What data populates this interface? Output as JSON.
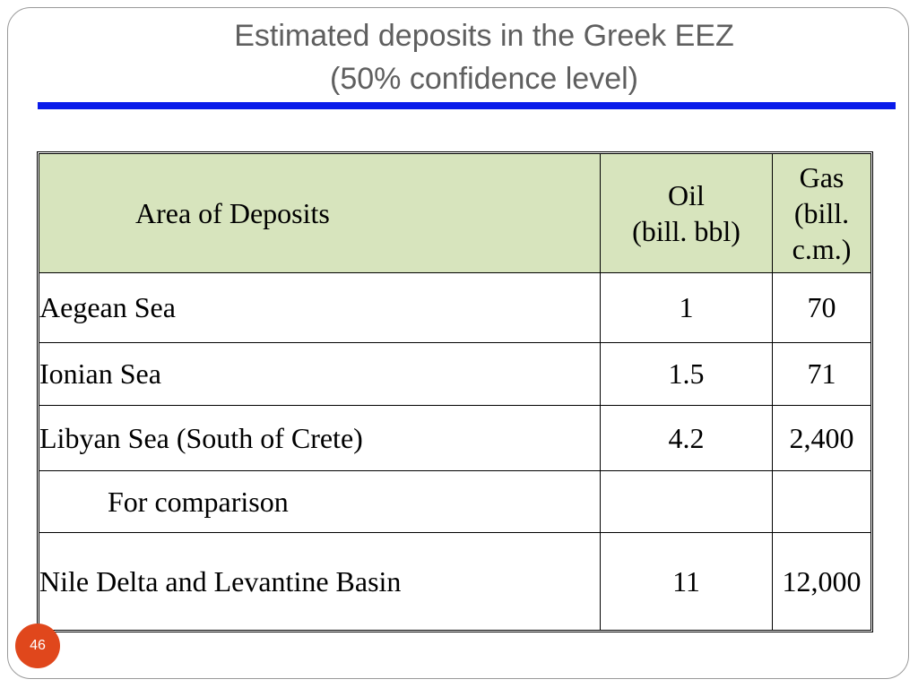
{
  "slide": {
    "title_line1": "Estimated deposits in the Greek EEZ",
    "title_line2": "(50% confidence level)",
    "page_number": "46"
  },
  "table": {
    "headers": {
      "area": "Area of Deposits",
      "oil_line1": "Oil",
      "oil_line2": "(bill. bbl)",
      "gas_line1": "Gas",
      "gas_line2": "(bill. c.m.)"
    },
    "rows": [
      {
        "area": "Aegean Sea",
        "oil": "1",
        "gas": "70"
      },
      {
        "area": "Ionian Sea",
        "oil": "1.5",
        "gas": "71"
      },
      {
        "area": "Libyan Sea (South of Crete)",
        "oil": "4.2",
        "gas": "2,400"
      },
      {
        "area": "For comparison",
        "oil": "",
        "gas": ""
      },
      {
        "area": "Nile Delta and Levantine Basin",
        "oil": "11",
        "gas": "12,000"
      }
    ]
  },
  "colors": {
    "title_text": "#5f5f5f",
    "title_rule": "#0a1bea",
    "header_fill": "#d7e4bd",
    "page_badge": "#e0471c"
  }
}
